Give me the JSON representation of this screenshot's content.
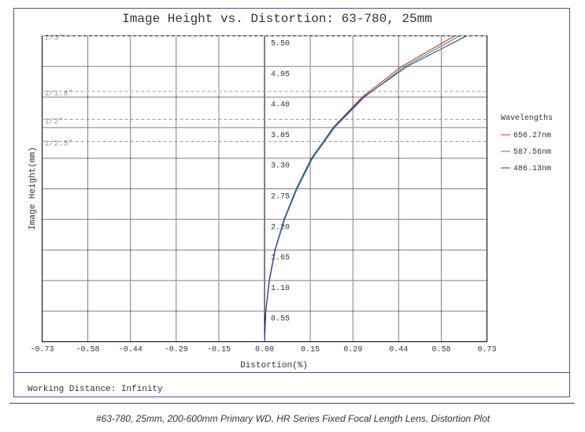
{
  "chart_data": {
    "type": "line",
    "title": "Image Height vs. Distortion: 63-780, 25mm",
    "xlabel": "Distortion(%)",
    "ylabel": "Image Height(mm)",
    "xlim": [
      -0.73,
      0.73
    ],
    "ylim": [
      0,
      5.5
    ],
    "xticks": [
      -0.73,
      -0.58,
      -0.44,
      -0.29,
      -0.15,
      {
        "value": 0,
        "label": "0.00"
      },
      0.15,
      0.29,
      0.44,
      0.58,
      0.73
    ],
    "yticks": [
      0.55,
      {
        "value": 1.1,
        "label": "1.10"
      },
      1.65,
      {
        "value": 2.2,
        "label": "2.20"
      },
      2.75,
      {
        "value": 3.3,
        "label": "3.30"
      },
      3.85,
      {
        "value": 4.4,
        "label": "4.40"
      },
      4.95,
      {
        "value": 5.5,
        "label": "5.50"
      }
    ],
    "grid": true,
    "legend_title": "Wavelengths",
    "y": [
      0,
      0.55,
      1.1,
      1.65,
      2.2,
      2.75,
      3.3,
      3.85,
      4.4,
      4.95,
      5.5
    ],
    "series": [
      {
        "name": "656.27nm",
        "color": "#d03030",
        "x": [
          0,
          0.004,
          0.016,
          0.035,
          0.065,
          0.105,
          0.155,
          0.225,
          0.32,
          0.45,
          0.624
        ]
      },
      {
        "name": "587.56nm",
        "color": "#30a030",
        "x": [
          0,
          0.004,
          0.016,
          0.035,
          0.066,
          0.107,
          0.158,
          0.23,
          0.328,
          0.46,
          0.64
        ]
      },
      {
        "name": "486.13nm",
        "color": "#3030d0",
        "x": [
          0,
          0.004,
          0.015,
          0.034,
          0.064,
          0.104,
          0.154,
          0.226,
          0.325,
          0.468,
          0.663
        ]
      }
    ],
    "formats": [
      {
        "label": "2/3\"",
        "value": 5.5
      },
      {
        "label": "1/1.8\"",
        "value": 4.5
      },
      {
        "label": "1/2\"",
        "value": 4.0
      },
      {
        "label": "1/2.5\"",
        "value": 3.6
      }
    ],
    "footer": "Working Distance: Infinity",
    "caption": "#63-780, 25mm, 200-600mm Primary WD, HR Series Fixed Focal Length Lens, Distortion Plot"
  }
}
